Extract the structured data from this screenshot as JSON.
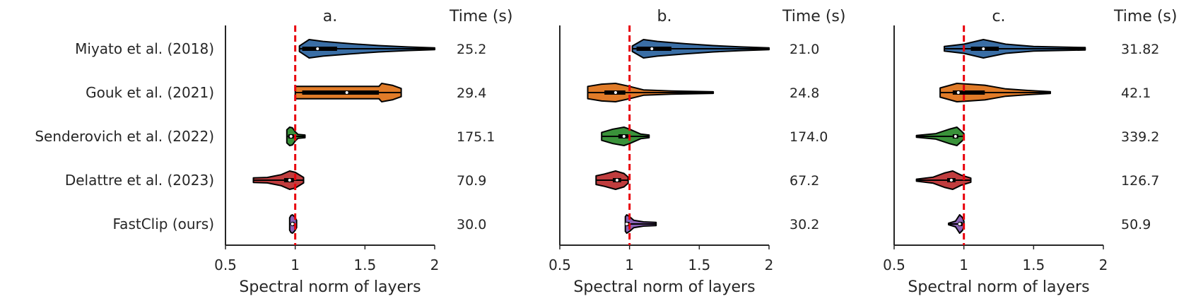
{
  "chart_data": [
    {
      "type": "violin",
      "title": "a.",
      "time_header": "Time (s)",
      "xlabel": "Spectral norm of layers",
      "xlim": [
        0.5,
        2
      ],
      "xticks": [
        0.5,
        1,
        1.5,
        2
      ],
      "xtick_labels": [
        "0.5",
        "1",
        "1.5",
        "2"
      ],
      "reference_line": 1,
      "categories": [
        "Miyato et al. (2018)",
        "Gouk et al. (2021)",
        "Senderovich et al. (2022)",
        "Delattre et al. (2023)",
        "FastClip (ours)"
      ],
      "times": [
        "25.2",
        "29.4",
        "175.1",
        "70.9",
        "30.0"
      ],
      "violins": [
        {
          "min": 1.03,
          "max": 2.0,
          "median": 1.16,
          "q1": 1.05,
          "q3": 1.3,
          "profile": [
            [
              1.03,
              0.3
            ],
            [
              1.1,
              1
            ],
            [
              1.2,
              0.8
            ],
            [
              1.4,
              0.55
            ],
            [
              1.6,
              0.35
            ],
            [
              1.8,
              0.2
            ],
            [
              2.0,
              0.1
            ]
          ]
        },
        {
          "min": 1.0,
          "max": 1.76,
          "median": 1.37,
          "q1": 1.05,
          "q3": 1.6,
          "profile": [
            [
              1.0,
              0.6
            ],
            [
              1.2,
              0.6
            ],
            [
              1.4,
              0.6
            ],
            [
              1.6,
              0.6
            ],
            [
              1.62,
              0.9
            ],
            [
              1.7,
              0.7
            ],
            [
              1.76,
              0.4
            ]
          ]
        },
        {
          "min": 0.94,
          "max": 1.07,
          "median": 0.97,
          "q1": 0.95,
          "q3": 0.99,
          "profile": [
            [
              0.94,
              1.0
            ],
            [
              0.96,
              1.4
            ],
            [
              0.98,
              1.3
            ],
            [
              1.0,
              0.7
            ],
            [
              1.02,
              0.3
            ],
            [
              1.07,
              0.2
            ]
          ]
        },
        {
          "min": 0.7,
          "max": 1.06,
          "median": 0.96,
          "q1": 0.92,
          "q3": 0.99,
          "profile": [
            [
              0.7,
              0.25
            ],
            [
              0.8,
              0.3
            ],
            [
              0.9,
              0.6
            ],
            [
              0.96,
              1.0
            ],
            [
              1.0,
              0.85
            ],
            [
              1.06,
              0.3
            ]
          ]
        },
        {
          "min": 0.96,
          "max": 1.01,
          "median": 0.98,
          "q1": 0.97,
          "q3": 0.995,
          "profile": [
            [
              0.96,
              1.0
            ],
            [
              0.97,
              1.4
            ],
            [
              0.98,
              1.5
            ],
            [
              0.99,
              1.3
            ],
            [
              1.0,
              1.0
            ],
            [
              1.01,
              0.6
            ]
          ]
        }
      ]
    },
    {
      "type": "violin",
      "title": "b.",
      "time_header": "Time (s)",
      "xlabel": "Spectral norm of layers",
      "xlim": [
        0.5,
        2
      ],
      "xticks": [
        0.5,
        1,
        1.5,
        2
      ],
      "xtick_labels": [
        "0.5",
        "1",
        "1.5",
        "2"
      ],
      "reference_line": 1,
      "categories": [],
      "times": [
        "21.0",
        "24.8",
        "174.0",
        "67.2",
        "30.2"
      ],
      "violins": [
        {
          "min": 1.02,
          "max": 2.0,
          "median": 1.16,
          "q1": 1.05,
          "q3": 1.3,
          "profile": [
            [
              1.02,
              0.3
            ],
            [
              1.1,
              1
            ],
            [
              1.2,
              0.8
            ],
            [
              1.4,
              0.55
            ],
            [
              1.6,
              0.35
            ],
            [
              1.8,
              0.2
            ],
            [
              2.0,
              0.1
            ]
          ]
        },
        {
          "min": 0.7,
          "max": 1.6,
          "median": 0.9,
          "q1": 0.82,
          "q3": 0.97,
          "profile": [
            [
              0.7,
              0.8
            ],
            [
              0.8,
              1.1
            ],
            [
              0.9,
              1.2
            ],
            [
              1.0,
              0.8
            ],
            [
              1.1,
              0.35
            ],
            [
              1.3,
              0.2
            ],
            [
              1.6,
              0.1
            ]
          ]
        },
        {
          "min": 0.8,
          "max": 1.14,
          "median": 0.96,
          "q1": 0.92,
          "q3": 0.99,
          "profile": [
            [
              0.8,
              0.6
            ],
            [
              0.88,
              1.1
            ],
            [
              0.96,
              1.4
            ],
            [
              1.0,
              1.1
            ],
            [
              1.08,
              0.35
            ],
            [
              1.14,
              0.2
            ]
          ]
        },
        {
          "min": 0.76,
          "max": 0.99,
          "median": 0.91,
          "q1": 0.88,
          "q3": 0.94,
          "profile": [
            [
              0.76,
              0.7
            ],
            [
              0.82,
              1.0
            ],
            [
              0.9,
              1.5
            ],
            [
              0.96,
              1.1
            ],
            [
              0.99,
              0.5
            ]
          ]
        },
        {
          "min": 0.97,
          "max": 1.19,
          "median": 0.98,
          "q1": 0.975,
          "q3": 1.0,
          "profile": [
            [
              0.97,
              1.2
            ],
            [
              0.98,
              1.5
            ],
            [
              1.0,
              1.2
            ],
            [
              1.03,
              0.6
            ],
            [
              1.1,
              0.35
            ],
            [
              1.19,
              0.25
            ]
          ]
        }
      ]
    },
    {
      "type": "violin",
      "title": "c.",
      "time_header": "Time (s)",
      "xlabel": "Spectral norm of layers",
      "xlim": [
        0.5,
        2
      ],
      "xticks": [
        0.5,
        1,
        1.5,
        2
      ],
      "xtick_labels": [
        "0.5",
        "1",
        "1.5",
        "2"
      ],
      "reference_line": 1,
      "categories": [],
      "times": [
        "31.82",
        "42.1",
        "339.2",
        "126.7",
        "50.9"
      ],
      "violins": [
        {
          "min": 0.86,
          "max": 1.87,
          "median": 1.14,
          "q1": 1.05,
          "q3": 1.25,
          "profile": [
            [
              0.86,
              0.15
            ],
            [
              1.0,
              0.3
            ],
            [
              1.14,
              0.6
            ],
            [
              1.3,
              0.3
            ],
            [
              1.5,
              0.15
            ],
            [
              1.87,
              0.08
            ]
          ]
        },
        {
          "min": 0.83,
          "max": 1.62,
          "median": 0.96,
          "q1": 0.92,
          "q3": 1.15,
          "profile": [
            [
              0.83,
              0.25
            ],
            [
              0.95,
              0.5
            ],
            [
              1.05,
              0.45
            ],
            [
              1.15,
              0.4
            ],
            [
              1.3,
              0.2
            ],
            [
              1.45,
              0.12
            ],
            [
              1.62,
              0.05
            ]
          ]
        },
        {
          "min": 0.66,
          "max": 1.0,
          "median": 0.94,
          "q1": 0.92,
          "q3": 0.96,
          "profile": [
            [
              0.66,
              0.1
            ],
            [
              0.8,
              0.3
            ],
            [
              0.9,
              0.8
            ],
            [
              0.95,
              1.0
            ],
            [
              0.98,
              0.6
            ],
            [
              1.0,
              0.3
            ]
          ]
        },
        {
          "min": 0.66,
          "max": 1.05,
          "median": 0.91,
          "q1": 0.88,
          "q3": 0.94,
          "profile": [
            [
              0.66,
              0.1
            ],
            [
              0.78,
              0.3
            ],
            [
              0.86,
              0.7
            ],
            [
              0.92,
              0.9
            ],
            [
              0.98,
              0.5
            ],
            [
              1.05,
              0.2
            ]
          ]
        },
        {
          "min": 0.89,
          "max": 1.0,
          "median": 0.97,
          "q1": 0.96,
          "q3": 0.99,
          "profile": [
            [
              0.89,
              0.1
            ],
            [
              0.94,
              0.4
            ],
            [
              0.97,
              1.3
            ],
            [
              0.99,
              0.9
            ],
            [
              1.0,
              0.4
            ]
          ]
        }
      ]
    }
  ],
  "colors": {
    "series": [
      "#3a6ea5",
      "#e07b28",
      "#3a923a",
      "#c03d3e",
      "#8a63b5"
    ],
    "reference_line": "#e8000b",
    "axis": "#262626",
    "box": "#000000",
    "median": "#ffffff"
  }
}
